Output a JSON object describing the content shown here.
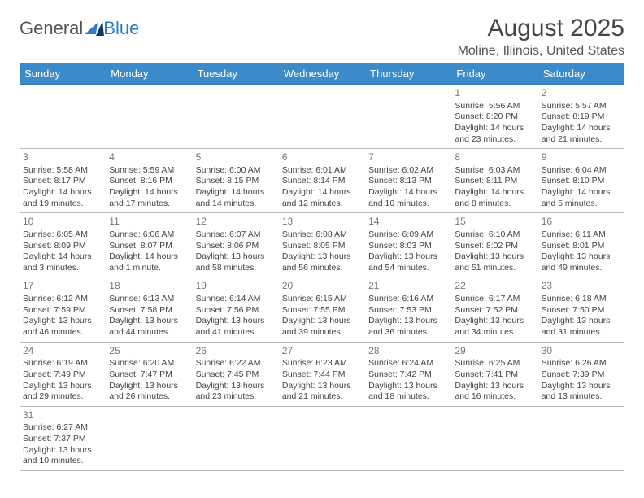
{
  "logo": {
    "text1": "General",
    "text2": "Blue"
  },
  "title": "August 2025",
  "location": "Moline, Illinois, United States",
  "colors": {
    "header_bg": "#3b8bca",
    "line": "#2f7dc4"
  },
  "day_headers": [
    "Sunday",
    "Monday",
    "Tuesday",
    "Wednesday",
    "Thursday",
    "Friday",
    "Saturday"
  ],
  "weeks": [
    [
      null,
      null,
      null,
      null,
      null,
      {
        "n": "1",
        "sr": "Sunrise: 5:56 AM",
        "ss": "Sunset: 8:20 PM",
        "dl": "Daylight: 14 hours and 23 minutes."
      },
      {
        "n": "2",
        "sr": "Sunrise: 5:57 AM",
        "ss": "Sunset: 8:19 PM",
        "dl": "Daylight: 14 hours and 21 minutes."
      }
    ],
    [
      {
        "n": "3",
        "sr": "Sunrise: 5:58 AM",
        "ss": "Sunset: 8:17 PM",
        "dl": "Daylight: 14 hours and 19 minutes."
      },
      {
        "n": "4",
        "sr": "Sunrise: 5:59 AM",
        "ss": "Sunset: 8:16 PM",
        "dl": "Daylight: 14 hours and 17 minutes."
      },
      {
        "n": "5",
        "sr": "Sunrise: 6:00 AM",
        "ss": "Sunset: 8:15 PM",
        "dl": "Daylight: 14 hours and 14 minutes."
      },
      {
        "n": "6",
        "sr": "Sunrise: 6:01 AM",
        "ss": "Sunset: 8:14 PM",
        "dl": "Daylight: 14 hours and 12 minutes."
      },
      {
        "n": "7",
        "sr": "Sunrise: 6:02 AM",
        "ss": "Sunset: 8:13 PM",
        "dl": "Daylight: 14 hours and 10 minutes."
      },
      {
        "n": "8",
        "sr": "Sunrise: 6:03 AM",
        "ss": "Sunset: 8:11 PM",
        "dl": "Daylight: 14 hours and 8 minutes."
      },
      {
        "n": "9",
        "sr": "Sunrise: 6:04 AM",
        "ss": "Sunset: 8:10 PM",
        "dl": "Daylight: 14 hours and 5 minutes."
      }
    ],
    [
      {
        "n": "10",
        "sr": "Sunrise: 6:05 AM",
        "ss": "Sunset: 8:09 PM",
        "dl": "Daylight: 14 hours and 3 minutes."
      },
      {
        "n": "11",
        "sr": "Sunrise: 6:06 AM",
        "ss": "Sunset: 8:07 PM",
        "dl": "Daylight: 14 hours and 1 minute."
      },
      {
        "n": "12",
        "sr": "Sunrise: 6:07 AM",
        "ss": "Sunset: 8:06 PM",
        "dl": "Daylight: 13 hours and 58 minutes."
      },
      {
        "n": "13",
        "sr": "Sunrise: 6:08 AM",
        "ss": "Sunset: 8:05 PM",
        "dl": "Daylight: 13 hours and 56 minutes."
      },
      {
        "n": "14",
        "sr": "Sunrise: 6:09 AM",
        "ss": "Sunset: 8:03 PM",
        "dl": "Daylight: 13 hours and 54 minutes."
      },
      {
        "n": "15",
        "sr": "Sunrise: 6:10 AM",
        "ss": "Sunset: 8:02 PM",
        "dl": "Daylight: 13 hours and 51 minutes."
      },
      {
        "n": "16",
        "sr": "Sunrise: 6:11 AM",
        "ss": "Sunset: 8:01 PM",
        "dl": "Daylight: 13 hours and 49 minutes."
      }
    ],
    [
      {
        "n": "17",
        "sr": "Sunrise: 6:12 AM",
        "ss": "Sunset: 7:59 PM",
        "dl": "Daylight: 13 hours and 46 minutes."
      },
      {
        "n": "18",
        "sr": "Sunrise: 6:13 AM",
        "ss": "Sunset: 7:58 PM",
        "dl": "Daylight: 13 hours and 44 minutes."
      },
      {
        "n": "19",
        "sr": "Sunrise: 6:14 AM",
        "ss": "Sunset: 7:56 PM",
        "dl": "Daylight: 13 hours and 41 minutes."
      },
      {
        "n": "20",
        "sr": "Sunrise: 6:15 AM",
        "ss": "Sunset: 7:55 PM",
        "dl": "Daylight: 13 hours and 39 minutes."
      },
      {
        "n": "21",
        "sr": "Sunrise: 6:16 AM",
        "ss": "Sunset: 7:53 PM",
        "dl": "Daylight: 13 hours and 36 minutes."
      },
      {
        "n": "22",
        "sr": "Sunrise: 6:17 AM",
        "ss": "Sunset: 7:52 PM",
        "dl": "Daylight: 13 hours and 34 minutes."
      },
      {
        "n": "23",
        "sr": "Sunrise: 6:18 AM",
        "ss": "Sunset: 7:50 PM",
        "dl": "Daylight: 13 hours and 31 minutes."
      }
    ],
    [
      {
        "n": "24",
        "sr": "Sunrise: 6:19 AM",
        "ss": "Sunset: 7:49 PM",
        "dl": "Daylight: 13 hours and 29 minutes."
      },
      {
        "n": "25",
        "sr": "Sunrise: 6:20 AM",
        "ss": "Sunset: 7:47 PM",
        "dl": "Daylight: 13 hours and 26 minutes."
      },
      {
        "n": "26",
        "sr": "Sunrise: 6:22 AM",
        "ss": "Sunset: 7:45 PM",
        "dl": "Daylight: 13 hours and 23 minutes."
      },
      {
        "n": "27",
        "sr": "Sunrise: 6:23 AM",
        "ss": "Sunset: 7:44 PM",
        "dl": "Daylight: 13 hours and 21 minutes."
      },
      {
        "n": "28",
        "sr": "Sunrise: 6:24 AM",
        "ss": "Sunset: 7:42 PM",
        "dl": "Daylight: 13 hours and 18 minutes."
      },
      {
        "n": "29",
        "sr": "Sunrise: 6:25 AM",
        "ss": "Sunset: 7:41 PM",
        "dl": "Daylight: 13 hours and 16 minutes."
      },
      {
        "n": "30",
        "sr": "Sunrise: 6:26 AM",
        "ss": "Sunset: 7:39 PM",
        "dl": "Daylight: 13 hours and 13 minutes."
      }
    ],
    [
      {
        "n": "31",
        "sr": "Sunrise: 6:27 AM",
        "ss": "Sunset: 7:37 PM",
        "dl": "Daylight: 13 hours and 10 minutes."
      },
      null,
      null,
      null,
      null,
      null,
      null
    ]
  ]
}
